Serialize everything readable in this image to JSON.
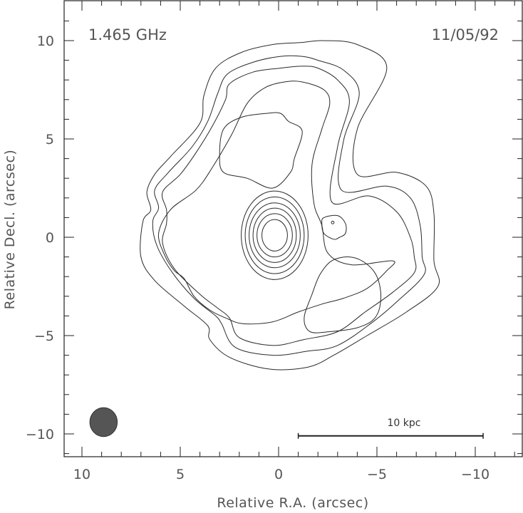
{
  "frequency_label": "1.465 GHz",
  "date_label": "11/05/92",
  "scale_bar_label": "10 kpc",
  "colors": {
    "contour": "#2a2a2a",
    "beam": "#555555",
    "text": "#555555"
  },
  "chart_data": {
    "type": "contour",
    "xlabel": "Relative R.A. (arcsec)",
    "ylabel": "Relative Decl. (arcsec)",
    "xlim": [
      11,
      -12.5
    ],
    "ylim": [
      -11.3,
      12
    ],
    "x_axis_reversed": true,
    "x_ticks": [
      10,
      5,
      0,
      -5,
      -10
    ],
    "x_tick_labels": [
      "10",
      "5",
      "0",
      "−5",
      "−10"
    ],
    "y_ticks": [
      10,
      5,
      0,
      -5,
      -10
    ],
    "y_tick_labels": [
      "10",
      "5",
      "0",
      "−5",
      "−10"
    ],
    "grid": false,
    "core_center": [
      0.2,
      0.1
    ],
    "beam": {
      "center": [
        8.9,
        -9.4
      ],
      "major_arcsec": 1.7,
      "minor_arcsec": 1.5
    },
    "scale_bar": {
      "x_start": -1.0,
      "x_end": -10.4,
      "y": -10.1,
      "length_kpc": 10
    },
    "contours": [
      {
        "level_index": 1,
        "points": [
          [
            -2.3,
            10.0
          ],
          [
            -4.0,
            9.8
          ],
          [
            -5.5,
            8.6
          ],
          [
            -4.0,
            5.5
          ],
          [
            -4.0,
            3.2
          ],
          [
            -6.0,
            3.3
          ],
          [
            -7.5,
            2.6
          ],
          [
            -7.9,
            1.2
          ],
          [
            -7.9,
            -1.2
          ],
          [
            -8.1,
            -2.5
          ],
          [
            -6.5,
            -3.8
          ],
          [
            -4.5,
            -5.0
          ],
          [
            -2.8,
            -6.0
          ],
          [
            -1.5,
            -6.6
          ],
          [
            0.5,
            -6.7
          ],
          [
            2.5,
            -6.1
          ],
          [
            3.5,
            -5.2
          ],
          [
            3.6,
            -4.5
          ],
          [
            4.8,
            -3.5
          ],
          [
            6.3,
            -2.2
          ],
          [
            7.0,
            -1.0
          ],
          [
            6.9,
            0.8
          ],
          [
            6.5,
            1.4
          ],
          [
            6.7,
            2.3
          ],
          [
            6.3,
            3.2
          ],
          [
            5.5,
            4.1
          ],
          [
            4.0,
            5.8
          ],
          [
            3.8,
            7.2
          ],
          [
            3.2,
            8.6
          ],
          [
            1.9,
            9.4
          ],
          [
            0.3,
            9.8
          ],
          [
            -1.1,
            9.9
          ]
        ]
      },
      {
        "level_index": 2,
        "points": [
          [
            -2.0,
            9.0
          ],
          [
            -3.3,
            8.5
          ],
          [
            -4.1,
            7.3
          ],
          [
            -3.3,
            4.9
          ],
          [
            -3.2,
            2.4
          ],
          [
            -5.5,
            2.6
          ],
          [
            -6.7,
            2.0
          ],
          [
            -7.2,
            0.6
          ],
          [
            -7.3,
            -1.0
          ],
          [
            -7.4,
            -1.9
          ],
          [
            -6.1,
            -3.2
          ],
          [
            -4.8,
            -4.3
          ],
          [
            -3.0,
            -5.5
          ],
          [
            -1.4,
            -5.8
          ],
          [
            0.3,
            -6.0
          ],
          [
            2.2,
            -5.6
          ],
          [
            2.9,
            -4.4
          ],
          [
            3.2,
            -4.0
          ],
          [
            4.3,
            -3.1
          ],
          [
            5.4,
            -1.8
          ],
          [
            6.2,
            -0.4
          ],
          [
            6.4,
            0.8
          ],
          [
            6.1,
            1.5
          ],
          [
            6.3,
            2.4
          ],
          [
            5.6,
            3.3
          ],
          [
            4.4,
            4.6
          ],
          [
            3.6,
            5.9
          ],
          [
            3.1,
            7.3
          ],
          [
            2.6,
            8.3
          ],
          [
            1.3,
            8.9
          ],
          [
            -0.1,
            9.2
          ],
          [
            -1.2,
            9.2
          ]
        ]
      },
      {
        "level_index": 3,
        "points": [
          [
            -2.0,
            8.6
          ],
          [
            -3.0,
            8.0
          ],
          [
            -3.6,
            6.9
          ],
          [
            -3.0,
            4.6
          ],
          [
            -2.7,
            1.8
          ],
          [
            -4.6,
            2.1
          ],
          [
            -6.0,
            1.3
          ],
          [
            -6.7,
            0.0
          ],
          [
            -6.9,
            -1.0
          ],
          [
            -6.9,
            -1.8
          ],
          [
            -5.8,
            -2.8
          ],
          [
            -4.4,
            -3.8
          ],
          [
            -3.0,
            -4.8
          ],
          [
            -1.3,
            -5.2
          ],
          [
            0.3,
            -5.5
          ],
          [
            2.0,
            -5.1
          ],
          [
            2.5,
            -4.1
          ],
          [
            3.1,
            -3.6
          ],
          [
            4.0,
            -2.9
          ],
          [
            5.3,
            -1.6
          ],
          [
            5.9,
            -0.3
          ],
          [
            5.7,
            0.7
          ],
          [
            5.7,
            1.4
          ],
          [
            5.9,
            2.3
          ],
          [
            5.0,
            3.2
          ],
          [
            4.2,
            4.3
          ],
          [
            3.4,
            5.6
          ],
          [
            2.7,
            7.0
          ],
          [
            2.5,
            7.8
          ],
          [
            1.3,
            8.4
          ],
          [
            -0.1,
            8.6
          ],
          [
            -1.2,
            8.7
          ]
        ]
      },
      {
        "level_index": 4,
        "points": [
          [
            -1.2,
            7.9
          ],
          [
            -2.3,
            7.5
          ],
          [
            -2.6,
            6.8
          ],
          [
            -2.2,
            5.5
          ],
          [
            -1.7,
            3.7
          ],
          [
            -1.8,
            1.7
          ],
          [
            -2.2,
            0.6
          ],
          [
            -2.5,
            -0.8
          ],
          [
            -3.7,
            -1.4
          ],
          [
            -5.8,
            -1.2
          ],
          [
            -5.5,
            -1.7
          ],
          [
            -4.5,
            -2.6
          ],
          [
            -3.3,
            -3.1
          ],
          [
            -2.2,
            -3.4
          ],
          [
            -1.0,
            -3.8
          ],
          [
            0.3,
            -4.3
          ],
          [
            1.8,
            -4.4
          ],
          [
            2.7,
            -4.1
          ],
          [
            3.5,
            -3.7
          ],
          [
            4.3,
            -3.0
          ],
          [
            4.8,
            -2.1
          ],
          [
            5.3,
            -1.7
          ],
          [
            5.8,
            -0.9
          ],
          [
            6.1,
            0.2
          ],
          [
            5.5,
            1.4
          ],
          [
            4.2,
            2.4
          ],
          [
            3.4,
            3.5
          ],
          [
            2.4,
            5.2
          ],
          [
            1.6,
            6.8
          ],
          [
            0.7,
            7.6
          ],
          [
            -0.3,
            7.9
          ]
        ]
      },
      {
        "level_index": 5,
        "points": [
          [
            -0.1,
            6.3
          ],
          [
            -0.5,
            5.9
          ],
          [
            -1.2,
            5.4
          ],
          [
            -0.8,
            4.0
          ],
          [
            -0.6,
            3.3
          ],
          [
            0.3,
            2.5
          ],
          [
            1.6,
            3.0
          ],
          [
            2.8,
            3.3
          ],
          [
            3.0,
            4.2
          ],
          [
            2.8,
            5.5
          ],
          [
            1.9,
            6.1
          ],
          [
            0.6,
            6.3
          ]
        ]
      },
      {
        "level_index": 6,
        "points": [
          [
            -2.3,
            1.0
          ],
          [
            -3.0,
            1.1
          ],
          [
            -3.4,
            0.7
          ],
          [
            -3.4,
            0.2
          ],
          [
            -3.1,
            0.0
          ],
          [
            -2.8,
            -0.1
          ],
          [
            -2.3,
            0.2
          ],
          [
            -2.2,
            0.7
          ]
        ]
      },
      {
        "level_index": 7,
        "points": [
          [
            -2.7,
            -1.2
          ],
          [
            -3.6,
            -1.0
          ],
          [
            -4.4,
            -1.3
          ],
          [
            -5.0,
            -2.0
          ],
          [
            -5.2,
            -3.1
          ],
          [
            -4.9,
            -4.1
          ],
          [
            -4.0,
            -4.6
          ],
          [
            -2.6,
            -4.8
          ],
          [
            -1.6,
            -4.8
          ],
          [
            -1.3,
            -4.1
          ],
          [
            -1.7,
            -2.9
          ],
          [
            -2.1,
            -1.9
          ]
        ]
      },
      {
        "level_index": 8,
        "shape": "ellipse",
        "center": [
          -2.75,
          0.75
        ],
        "rx": 0.07,
        "ry": 0.07
      },
      {
        "level_index": 9,
        "shape": "ellipse",
        "center": [
          0.2,
          0.1
        ],
        "rx": 1.7,
        "ry": 2.25
      },
      {
        "level_index": 10,
        "shape": "ellipse",
        "center": [
          0.2,
          0.1
        ],
        "rx": 1.5,
        "ry": 1.95
      },
      {
        "level_index": 11,
        "shape": "ellipse",
        "center": [
          0.2,
          0.1
        ],
        "rx": 1.3,
        "ry": 1.65
      },
      {
        "level_index": 12,
        "shape": "ellipse",
        "center": [
          0.2,
          0.1
        ],
        "rx": 1.1,
        "ry": 1.38
      },
      {
        "level_index": 13,
        "shape": "ellipse",
        "center": [
          0.2,
          0.1
        ],
        "rx": 0.9,
        "ry": 1.1
      },
      {
        "level_index": 14,
        "shape": "ellipse",
        "center": [
          0.2,
          0.1
        ],
        "rx": 0.65,
        "ry": 0.8
      }
    ]
  }
}
